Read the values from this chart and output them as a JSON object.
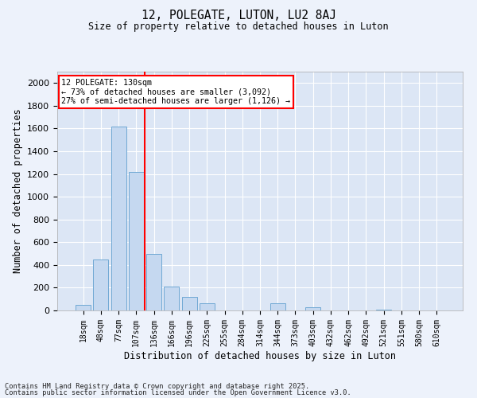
{
  "title_line1": "12, POLEGATE, LUTON, LU2 8AJ",
  "title_line2": "Size of property relative to detached houses in Luton",
  "xlabel": "Distribution of detached houses by size in Luton",
  "ylabel": "Number of detached properties",
  "categories": [
    "18sqm",
    "48sqm",
    "77sqm",
    "107sqm",
    "136sqm",
    "166sqm",
    "196sqm",
    "225sqm",
    "255sqm",
    "284sqm",
    "314sqm",
    "344sqm",
    "373sqm",
    "403sqm",
    "432sqm",
    "462sqm",
    "492sqm",
    "521sqm",
    "551sqm",
    "580sqm",
    "610sqm"
  ],
  "values": [
    50,
    450,
    1620,
    1220,
    500,
    210,
    120,
    60,
    0,
    0,
    0,
    60,
    0,
    30,
    0,
    0,
    0,
    10,
    0,
    0,
    0
  ],
  "bar_color": "#c5d8f0",
  "bar_edge_color": "#6fa8d4",
  "red_line_index": 4,
  "annotation_text": "12 POLEGATE: 130sqm\n← 73% of detached houses are smaller (3,092)\n27% of semi-detached houses are larger (1,126) →",
  "ylim": [
    0,
    2100
  ],
  "yticks": [
    0,
    200,
    400,
    600,
    800,
    1000,
    1200,
    1400,
    1600,
    1800,
    2000
  ],
  "background_color": "#dce6f5",
  "grid_color": "#ffffff",
  "fig_background": "#edf2fb",
  "footer_line1": "Contains HM Land Registry data © Crown copyright and database right 2025.",
  "footer_line2": "Contains public sector information licensed under the Open Government Licence v3.0."
}
